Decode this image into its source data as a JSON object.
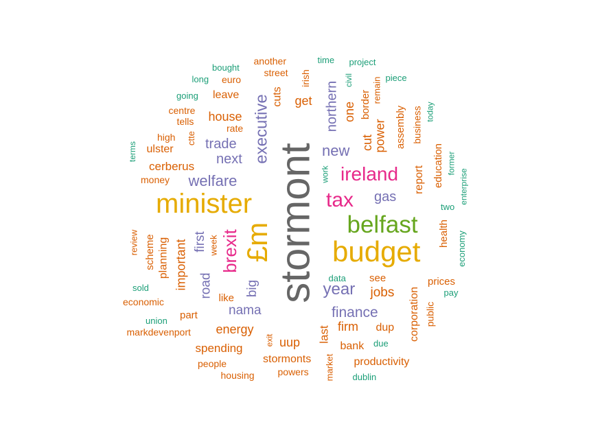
{
  "palette": {
    "gray": "#666666",
    "orange": "#D95F02",
    "teal": "#1B9E77",
    "purple": "#7570B3",
    "magenta": "#E7298A",
    "green": "#66A61E",
    "gold": "#E6AB02"
  },
  "words": [
    {
      "text": "stormont",
      "color": "gray",
      "vertical": true
    },
    {
      "text": "budget",
      "color": "gold",
      "vertical": false
    },
    {
      "text": "minister",
      "color": "gold",
      "vertical": false
    },
    {
      "text": "belfast",
      "color": "green",
      "vertical": false
    },
    {
      "text": "£m",
      "color": "gold",
      "vertical": true
    },
    {
      "text": "ireland",
      "color": "magenta",
      "vertical": false
    },
    {
      "text": "tax",
      "color": "magenta",
      "vertical": false
    },
    {
      "text": "brexit",
      "color": "magenta",
      "vertical": true
    },
    {
      "text": "year",
      "color": "purple",
      "vertical": false
    },
    {
      "text": "executive",
      "color": "purple",
      "vertical": true
    },
    {
      "text": "welfare",
      "color": "purple",
      "vertical": false
    },
    {
      "text": "finance",
      "color": "purple",
      "vertical": false
    },
    {
      "text": "new",
      "color": "purple",
      "vertical": false
    },
    {
      "text": "northern",
      "color": "purple",
      "vertical": true
    },
    {
      "text": "trade",
      "color": "purple",
      "vertical": false
    },
    {
      "text": "next",
      "color": "purple",
      "vertical": false
    },
    {
      "text": "nama",
      "color": "purple",
      "vertical": false
    },
    {
      "text": "gas",
      "color": "purple",
      "vertical": false
    },
    {
      "text": "first",
      "color": "purple",
      "vertical": true
    },
    {
      "text": "road",
      "color": "purple",
      "vertical": true
    },
    {
      "text": "big",
      "color": "purple",
      "vertical": true
    },
    {
      "text": "jobs",
      "color": "orange",
      "vertical": false
    },
    {
      "text": "energy",
      "color": "orange",
      "vertical": false
    },
    {
      "text": "house",
      "color": "orange",
      "vertical": false
    },
    {
      "text": "cerberus",
      "color": "orange",
      "vertical": false
    },
    {
      "text": "important",
      "color": "orange",
      "vertical": true
    },
    {
      "text": "power",
      "color": "orange",
      "vertical": true
    },
    {
      "text": "cut",
      "color": "orange",
      "vertical": true
    },
    {
      "text": "one",
      "color": "orange",
      "vertical": true
    },
    {
      "text": "spending",
      "color": "orange",
      "vertical": false
    },
    {
      "text": "uup",
      "color": "orange",
      "vertical": false
    },
    {
      "text": "firm",
      "color": "orange",
      "vertical": false
    },
    {
      "text": "last",
      "color": "orange",
      "vertical": true
    },
    {
      "text": "dup",
      "color": "orange",
      "vertical": false
    },
    {
      "text": "stormonts",
      "color": "orange",
      "vertical": false
    },
    {
      "text": "bank",
      "color": "orange",
      "vertical": false
    },
    {
      "text": "productivity",
      "color": "orange",
      "vertical": false
    },
    {
      "text": "corporation",
      "color": "orange",
      "vertical": true
    },
    {
      "text": "report",
      "color": "orange",
      "vertical": true
    },
    {
      "text": "get",
      "color": "orange",
      "vertical": false
    },
    {
      "text": "leave",
      "color": "orange",
      "vertical": false
    },
    {
      "text": "ulster",
      "color": "orange",
      "vertical": false
    },
    {
      "text": "planning",
      "color": "orange",
      "vertical": true
    },
    {
      "text": "scheme",
      "color": "orange",
      "vertical": true
    },
    {
      "text": "cuts",
      "color": "orange",
      "vertical": true
    },
    {
      "text": "health",
      "color": "orange",
      "vertical": true
    },
    {
      "text": "education",
      "color": "orange",
      "vertical": true
    },
    {
      "text": "assembly",
      "color": "orange",
      "vertical": true
    },
    {
      "text": "border",
      "color": "orange",
      "vertical": true
    },
    {
      "text": "business",
      "color": "orange",
      "vertical": true
    },
    {
      "text": "public",
      "color": "orange",
      "vertical": true
    },
    {
      "text": "prices",
      "color": "orange",
      "vertical": false
    },
    {
      "text": "part",
      "color": "orange",
      "vertical": false
    },
    {
      "text": "like",
      "color": "orange",
      "vertical": false
    },
    {
      "text": "see",
      "color": "orange",
      "vertical": false
    },
    {
      "text": "money",
      "color": "orange",
      "vertical": false
    },
    {
      "text": "economic",
      "color": "orange",
      "vertical": false
    },
    {
      "text": "people",
      "color": "orange",
      "vertical": false
    },
    {
      "text": "powers",
      "color": "orange",
      "vertical": false
    },
    {
      "text": "housing",
      "color": "orange",
      "vertical": false
    },
    {
      "text": "markdevenport",
      "color": "orange",
      "vertical": false
    },
    {
      "text": "another",
      "color": "orange",
      "vertical": false
    },
    {
      "text": "street",
      "color": "orange",
      "vertical": false
    },
    {
      "text": "euro",
      "color": "orange",
      "vertical": false
    },
    {
      "text": "centre",
      "color": "orange",
      "vertical": false
    },
    {
      "text": "tells",
      "color": "orange",
      "vertical": false
    },
    {
      "text": "high",
      "color": "orange",
      "vertical": false
    },
    {
      "text": "rate",
      "color": "orange",
      "vertical": false
    },
    {
      "text": "irish",
      "color": "orange",
      "vertical": true
    },
    {
      "text": "remain",
      "color": "orange",
      "vertical": true
    },
    {
      "text": "review",
      "color": "orange",
      "vertical": true
    },
    {
      "text": "week",
      "color": "orange",
      "vertical": true
    },
    {
      "text": "ctte",
      "color": "orange",
      "vertical": true
    },
    {
      "text": "exit",
      "color": "orange",
      "vertical": true
    },
    {
      "text": "market",
      "color": "orange",
      "vertical": true
    },
    {
      "text": "bought",
      "color": "teal",
      "vertical": false
    },
    {
      "text": "long",
      "color": "teal",
      "vertical": false
    },
    {
      "text": "going",
      "color": "teal",
      "vertical": false
    },
    {
      "text": "time",
      "color": "teal",
      "vertical": false
    },
    {
      "text": "project",
      "color": "teal",
      "vertical": false
    },
    {
      "text": "piece",
      "color": "teal",
      "vertical": false
    },
    {
      "text": "civil",
      "color": "teal",
      "vertical": true
    },
    {
      "text": "today",
      "color": "teal",
      "vertical": true
    },
    {
      "text": "terms",
      "color": "teal",
      "vertical": true
    },
    {
      "text": "work",
      "color": "teal",
      "vertical": true
    },
    {
      "text": "former",
      "color": "teal",
      "vertical": true
    },
    {
      "text": "enterprise",
      "color": "teal",
      "vertical": true
    },
    {
      "text": "two",
      "color": "teal",
      "vertical": false
    },
    {
      "text": "economy",
      "color": "teal",
      "vertical": true
    },
    {
      "text": "data",
      "color": "teal",
      "vertical": false
    },
    {
      "text": "pay",
      "color": "teal",
      "vertical": false
    },
    {
      "text": "sold",
      "color": "teal",
      "vertical": false
    },
    {
      "text": "union",
      "color": "teal",
      "vertical": false
    },
    {
      "text": "due",
      "color": "teal",
      "vertical": false
    },
    {
      "text": "dublin",
      "color": "teal",
      "vertical": false
    }
  ]
}
